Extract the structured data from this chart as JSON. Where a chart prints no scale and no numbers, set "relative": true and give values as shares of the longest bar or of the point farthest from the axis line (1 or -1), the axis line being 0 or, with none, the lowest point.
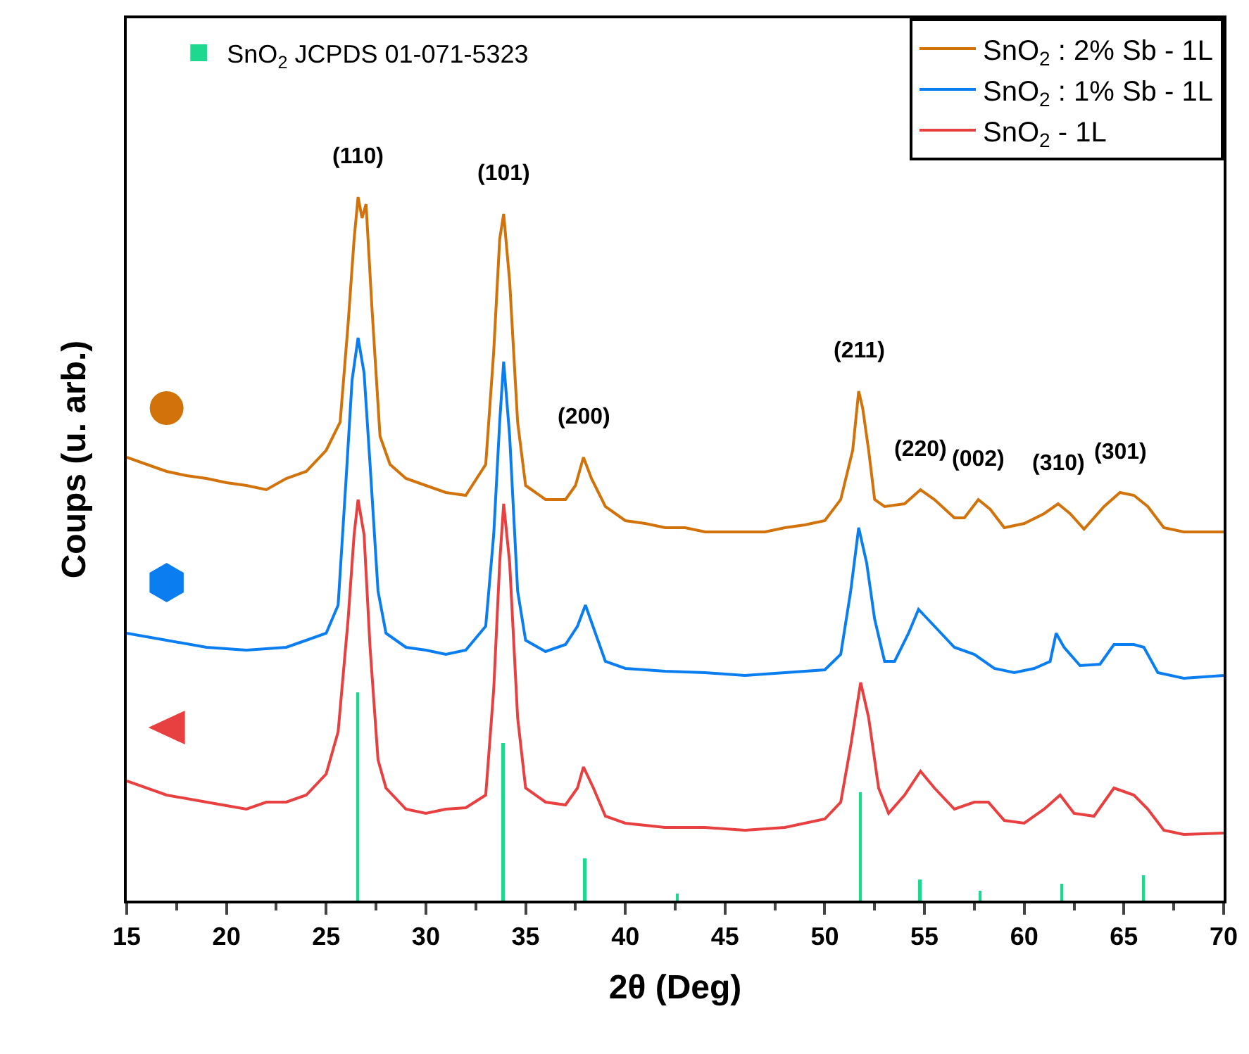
{
  "chart_data": {
    "type": "line",
    "relative": true,
    "xlabel": "2θ (Deg)",
    "ylabel": "Coups (u. arb.)",
    "xlim": [
      15,
      70
    ],
    "xticks": [
      15,
      20,
      25,
      30,
      35,
      40,
      45,
      50,
      55,
      60,
      65,
      70
    ],
    "grid": false,
    "legend": "top right",
    "marker": "none",
    "line_style": "solid",
    "series": [
      {
        "name": "SnO$_{2}$ : 2% Sb - 1L",
        "color": "#d2720a",
        "x": [
          15,
          16,
          17,
          18,
          19,
          20,
          21,
          22,
          23,
          24,
          25,
          25.7,
          26.1,
          26.4,
          26.6,
          26.8,
          27.0,
          27.3,
          27.7,
          28.2,
          29,
          30,
          31,
          32,
          33,
          33.4,
          33.7,
          33.9,
          34.2,
          34.6,
          35,
          36,
          37,
          37.5,
          37.9,
          38.3,
          39,
          40,
          41,
          42,
          43,
          44,
          45,
          46,
          47,
          48,
          49,
          50,
          50.8,
          51.4,
          51.7,
          51.9,
          52.2,
          52.5,
          53,
          54,
          54.8,
          55.5,
          56.5,
          57,
          57.7,
          58.3,
          59,
          60,
          61,
          61.7,
          62.3,
          63,
          64,
          64.8,
          65.5,
          66.2,
          67,
          68,
          69,
          70
        ],
        "values": [
          0.63,
          0.62,
          0.61,
          0.604,
          0.6,
          0.594,
          0.59,
          0.584,
          0.6,
          0.61,
          0.64,
          0.68,
          0.82,
          0.94,
          1.0,
          0.97,
          0.99,
          0.84,
          0.66,
          0.62,
          0.6,
          0.59,
          0.58,
          0.576,
          0.62,
          0.78,
          0.94,
          0.976,
          0.88,
          0.68,
          0.59,
          0.57,
          0.57,
          0.59,
          0.63,
          0.6,
          0.56,
          0.54,
          0.536,
          0.53,
          0.53,
          0.524,
          0.524,
          0.524,
          0.524,
          0.53,
          0.534,
          0.54,
          0.57,
          0.64,
          0.724,
          0.7,
          0.64,
          0.57,
          0.56,
          0.564,
          0.584,
          0.57,
          0.544,
          0.544,
          0.57,
          0.556,
          0.53,
          0.536,
          0.55,
          0.564,
          0.55,
          0.528,
          0.56,
          0.58,
          0.576,
          0.56,
          0.53,
          0.524,
          0.524,
          0.524
        ]
      },
      {
        "name": "SnO$_{2}$ : 1% Sb - 1L",
        "color": "#0a7ef0",
        "x": [
          15,
          17,
          19,
          21,
          23,
          24,
          25,
          25.6,
          26.0,
          26.3,
          26.6,
          26.9,
          27.2,
          27.6,
          28,
          29,
          30,
          31,
          32,
          33,
          33.4,
          33.7,
          33.9,
          34.2,
          34.6,
          35,
          36,
          37,
          37.6,
          38,
          38.5,
          39,
          40,
          42,
          44,
          46,
          48,
          50,
          50.8,
          51.3,
          51.7,
          52.1,
          52.5,
          53,
          53.5,
          54.2,
          54.7,
          55.5,
          56.5,
          57.5,
          58.5,
          59.5,
          60.5,
          61.3,
          61.6,
          62,
          62.8,
          63.8,
          64.5,
          65.5,
          66,
          66.7,
          68,
          70
        ],
        "values": [
          0.38,
          0.37,
          0.36,
          0.356,
          0.36,
          0.37,
          0.38,
          0.42,
          0.6,
          0.74,
          0.8,
          0.75,
          0.62,
          0.44,
          0.38,
          0.36,
          0.356,
          0.35,
          0.356,
          0.39,
          0.52,
          0.68,
          0.766,
          0.66,
          0.44,
          0.37,
          0.354,
          0.364,
          0.39,
          0.42,
          0.38,
          0.34,
          0.33,
          0.326,
          0.324,
          0.32,
          0.324,
          0.328,
          0.35,
          0.44,
          0.53,
          0.48,
          0.4,
          0.34,
          0.34,
          0.38,
          0.414,
          0.39,
          0.36,
          0.35,
          0.33,
          0.324,
          0.33,
          0.34,
          0.38,
          0.36,
          0.334,
          0.336,
          0.364,
          0.364,
          0.36,
          0.324,
          0.316,
          0.32
        ]
      },
      {
        "name": "SnO$_{2}$ - 1L",
        "color": "#e84040",
        "x": [
          15,
          17,
          19,
          21,
          22,
          23,
          24,
          25,
          25.6,
          26.1,
          26.4,
          26.6,
          26.9,
          27.2,
          27.6,
          28,
          29,
          30,
          31,
          32,
          33,
          33.4,
          33.7,
          33.9,
          34.2,
          34.6,
          35,
          36,
          37,
          37.6,
          37.9,
          38.4,
          39,
          40,
          42,
          44,
          46,
          48,
          50,
          50.8,
          51.3,
          51.8,
          52.2,
          52.7,
          53.2,
          54,
          54.8,
          55.5,
          56.5,
          57.5,
          58.2,
          59,
          60,
          61,
          61.8,
          62.5,
          63.5,
          64.5,
          65.5,
          66.2,
          67,
          68,
          70
        ],
        "values": [
          0.17,
          0.15,
          0.14,
          0.13,
          0.14,
          0.14,
          0.15,
          0.18,
          0.24,
          0.4,
          0.52,
          0.57,
          0.52,
          0.36,
          0.2,
          0.16,
          0.13,
          0.124,
          0.13,
          0.132,
          0.15,
          0.3,
          0.48,
          0.564,
          0.48,
          0.26,
          0.16,
          0.14,
          0.136,
          0.16,
          0.19,
          0.16,
          0.12,
          0.11,
          0.104,
          0.104,
          0.1,
          0.104,
          0.116,
          0.14,
          0.22,
          0.31,
          0.26,
          0.16,
          0.124,
          0.15,
          0.184,
          0.16,
          0.13,
          0.14,
          0.14,
          0.114,
          0.11,
          0.13,
          0.15,
          0.124,
          0.12,
          0.16,
          0.15,
          0.13,
          0.1,
          0.094,
          0.096
        ]
      },
      {
        "name": "SnO$_{2}$ JCPDS 01-071-5323",
        "type": "bar",
        "color": "#1ed88f",
        "x": [
          26.6,
          33.9,
          38.0,
          42.6,
          51.8,
          54.8,
          57.8,
          61.9,
          66.0
        ],
        "values": [
          0.296,
          0.224,
          0.06,
          0.01,
          0.154,
          0.03,
          0.014,
          0.024,
          0.036
        ]
      }
    ],
    "annotations": [
      {
        "text": "(110)",
        "x": 26.6,
        "y": 1.0
      },
      {
        "text": "(101)",
        "x": 33.9,
        "y": 0.976
      },
      {
        "text": "(200)",
        "x": 37.9,
        "y": 0.63
      },
      {
        "text": "(211)",
        "x": 51.7,
        "y": 0.724
      },
      {
        "text": "(220)",
        "x": 54.8,
        "y": 0.584
      },
      {
        "text": "(002)",
        "x": 57.7,
        "y": 0.57
      },
      {
        "text": "(310)",
        "x": 61.7,
        "y": 0.564
      },
      {
        "text": "(301)",
        "x": 64.8,
        "y": 0.58
      }
    ]
  }
}
